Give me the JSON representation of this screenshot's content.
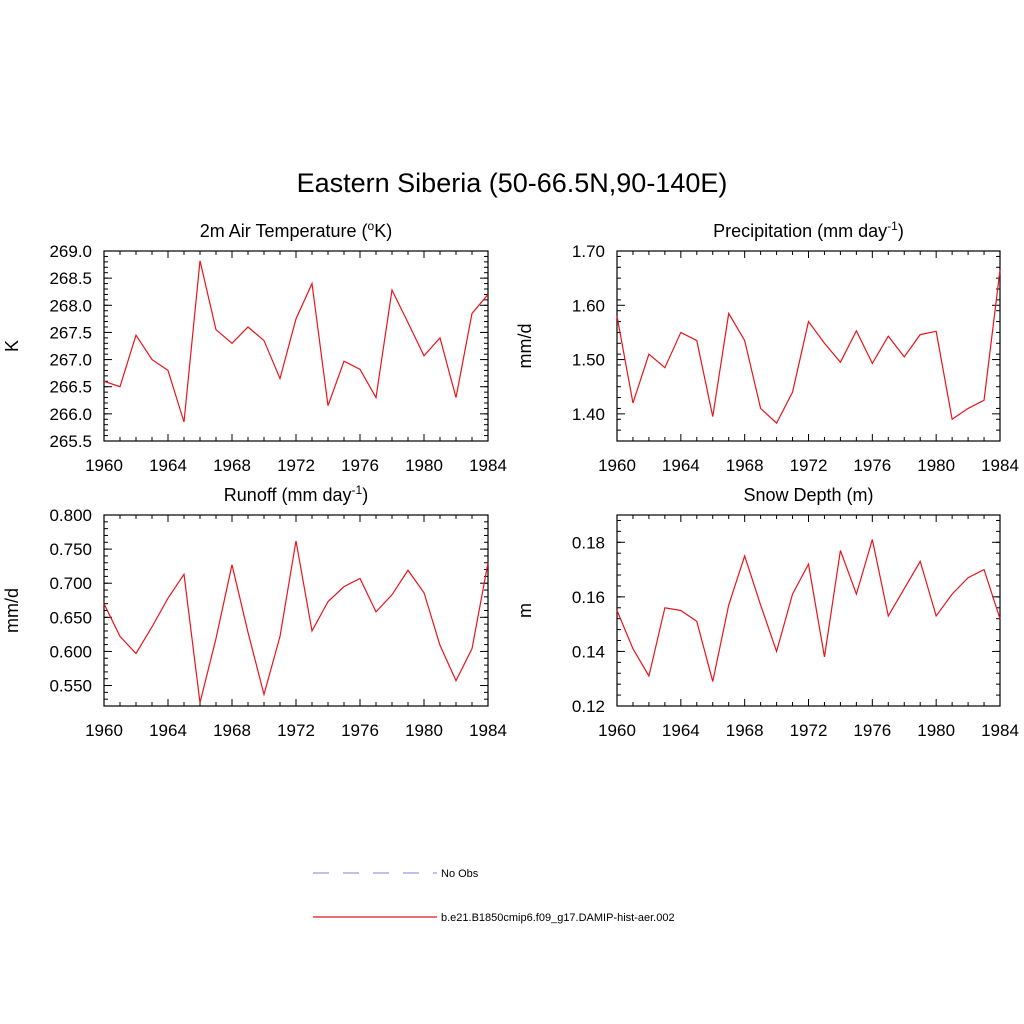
{
  "figure": {
    "title": "Eastern Siberia (50-66.5N,90-140E)"
  },
  "colors": {
    "model_line": "#e8141c",
    "obs_line": "#9a9ae6",
    "axis": "#000000"
  },
  "legend": {
    "placement": "bottom-center",
    "entries": [
      {
        "label": "No Obs",
        "style": "dashed",
        "color": "#9a9ae6"
      },
      {
        "label": "b.e21.B1850cmip6.f09_g17.DAMIP-hist-aer.002",
        "style": "solid",
        "color": "#e8141c"
      }
    ]
  },
  "chart_data": [
    {
      "type": "line",
      "title": "2m Air Temperature (oK)",
      "title_parts": {
        "main": "2m Air Temperature (",
        "sup": "o",
        "tail": "K)"
      },
      "ylabel": "K",
      "xlim": [
        1960,
        1984
      ],
      "ylim": [
        265.5,
        269.0
      ],
      "xticks": [
        1960,
        1964,
        1968,
        1972,
        1976,
        1980,
        1984
      ],
      "yticks": [
        "265.5",
        "266.0",
        "266.5",
        "267.0",
        "267.5",
        "268.0",
        "268.5",
        "269.0"
      ],
      "grid": false,
      "x": [
        1960,
        1961,
        1962,
        1963,
        1964,
        1965,
        1966,
        1967,
        1968,
        1969,
        1970,
        1971,
        1972,
        1973,
        1974,
        1975,
        1976,
        1977,
        1978,
        1979,
        1980,
        1981,
        1982,
        1983,
        1984
      ],
      "series": [
        {
          "name": "b.e21.B1850cmip6.f09_g17.DAMIP-hist-aer.002",
          "values": [
            266.6,
            266.5,
            267.45,
            267.0,
            266.8,
            265.85,
            268.82,
            267.55,
            267.3,
            267.6,
            267.35,
            266.65,
            267.75,
            268.4,
            266.15,
            266.97,
            266.82,
            266.3,
            268.28,
            267.68,
            267.07,
            267.4,
            266.3,
            267.85,
            268.2
          ]
        }
      ]
    },
    {
      "type": "line",
      "title": "Precipitation (mm day-1)",
      "title_parts": {
        "main": "Precipitation (mm day",
        "sup": "-1",
        "tail": ")"
      },
      "ylabel": "mm/d",
      "xlim": [
        1960,
        1984
      ],
      "ylim": [
        1.35,
        1.7
      ],
      "xticks": [
        1960,
        1964,
        1968,
        1972,
        1976,
        1980,
        1984
      ],
      "yticks": [
        "1.40",
        "1.50",
        "1.60",
        "1.70"
      ],
      "grid": false,
      "x": [
        1960,
        1961,
        1962,
        1963,
        1964,
        1965,
        1966,
        1967,
        1968,
        1969,
        1970,
        1971,
        1972,
        1973,
        1974,
        1975,
        1976,
        1977,
        1978,
        1979,
        1980,
        1981,
        1982,
        1983,
        1984
      ],
      "series": [
        {
          "name": "b.e21.B1850cmip6.f09_g17.DAMIP-hist-aer.002",
          "values": [
            1.58,
            1.42,
            1.51,
            1.485,
            1.55,
            1.535,
            1.395,
            1.585,
            1.535,
            1.41,
            1.383,
            1.44,
            1.57,
            1.53,
            1.495,
            1.553,
            1.493,
            1.543,
            1.505,
            1.546,
            1.552,
            1.39,
            1.41,
            1.425,
            1.665
          ]
        }
      ]
    },
    {
      "type": "line",
      "title": "Runoff (mm day-1)",
      "title_parts": {
        "main": "Runoff (mm day",
        "sup": "-1",
        "tail": ")"
      },
      "ylabel": "mm/d",
      "xlim": [
        1960,
        1984
      ],
      "ylim": [
        0.52,
        0.8
      ],
      "xticks": [
        1960,
        1964,
        1968,
        1972,
        1976,
        1980,
        1984
      ],
      "yticks": [
        "0.550",
        "0.600",
        "0.650",
        "0.700",
        "0.750",
        "0.800"
      ],
      "grid": false,
      "x": [
        1960,
        1961,
        1962,
        1963,
        1964,
        1965,
        1966,
        1967,
        1968,
        1969,
        1970,
        1971,
        1972,
        1973,
        1974,
        1975,
        1976,
        1977,
        1978,
        1979,
        1980,
        1981,
        1982,
        1983,
        1984
      ],
      "series": [
        {
          "name": "b.e21.B1850cmip6.f09_g17.DAMIP-hist-aer.002",
          "values": [
            0.67,
            0.622,
            0.597,
            0.636,
            0.678,
            0.713,
            0.525,
            0.619,
            0.727,
            0.628,
            0.537,
            0.622,
            0.762,
            0.63,
            0.673,
            0.695,
            0.707,
            0.658,
            0.683,
            0.719,
            0.686,
            0.609,
            0.557,
            0.604,
            0.73
          ]
        }
      ]
    },
    {
      "type": "line",
      "title": "Snow Depth (m)",
      "title_parts": {
        "main": "Snow Depth (m)",
        "sup": "",
        "tail": ""
      },
      "ylabel": "m",
      "xlim": [
        1960,
        1984
      ],
      "ylim": [
        0.12,
        0.19
      ],
      "xticks": [
        1960,
        1964,
        1968,
        1972,
        1976,
        1980,
        1984
      ],
      "yticks": [
        "0.12",
        "0.14",
        "0.16",
        "0.18"
      ],
      "grid": false,
      "x": [
        1960,
        1961,
        1962,
        1963,
        1964,
        1965,
        1966,
        1967,
        1968,
        1969,
        1970,
        1971,
        1972,
        1973,
        1974,
        1975,
        1976,
        1977,
        1978,
        1979,
        1980,
        1981,
        1982,
        1983,
        1984
      ],
      "series": [
        {
          "name": "b.e21.B1850cmip6.f09_g17.DAMIP-hist-aer.002",
          "values": [
            0.155,
            0.141,
            0.131,
            0.156,
            0.155,
            0.151,
            0.129,
            0.157,
            0.175,
            0.157,
            0.14,
            0.161,
            0.172,
            0.138,
            0.177,
            0.161,
            0.181,
            0.153,
            0.163,
            0.173,
            0.153,
            0.161,
            0.167,
            0.17,
            0.152
          ]
        }
      ]
    }
  ]
}
